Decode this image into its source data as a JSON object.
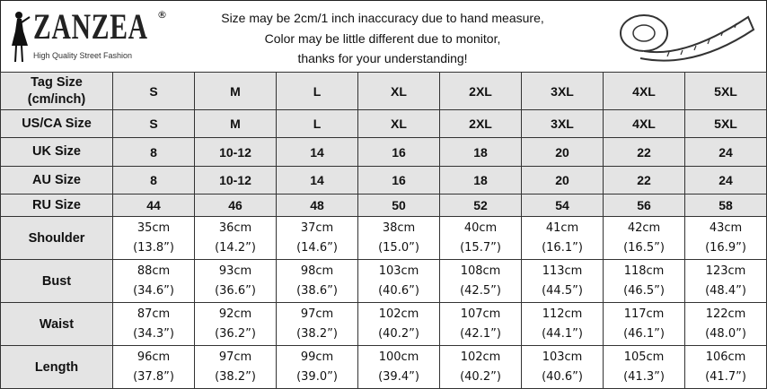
{
  "brand": {
    "name": "ZANZEA",
    "registered": "®",
    "tagline": "High Quality Street Fashion"
  },
  "notes": [
    "Size may be 2cm/1 inch inaccuracy due to hand measure,",
    "Color may be little different due to monitor,",
    "thanks for your understanding!"
  ],
  "icons": {
    "logo": "woman-silhouette-icon",
    "tape": "measuring-tape-icon"
  },
  "size_rows": [
    {
      "label": "Tag Size (cm/inch)",
      "values": [
        "S",
        "M",
        "L",
        "XL",
        "2XL",
        "3XL",
        "4XL",
        "5XL"
      ]
    },
    {
      "label": "US/CA Size",
      "values": [
        "S",
        "M",
        "L",
        "XL",
        "2XL",
        "3XL",
        "4XL",
        "5XL"
      ]
    },
    {
      "label": "UK Size",
      "values": [
        "8",
        "10-12",
        "14",
        "16",
        "18",
        "20",
        "22",
        "24"
      ]
    },
    {
      "label": "AU Size",
      "values": [
        "8",
        "10-12",
        "14",
        "16",
        "18",
        "20",
        "22",
        "24"
      ]
    },
    {
      "label": "RU Size",
      "values": [
        "44",
        "46",
        "48",
        "50",
        "52",
        "54",
        "56",
        "58"
      ]
    }
  ],
  "measure_rows": [
    {
      "label": "Shoulder",
      "cm": [
        "35cm",
        "36cm",
        "37cm",
        "38cm",
        "40cm",
        "41cm",
        "42cm",
        "43cm"
      ],
      "inch": [
        "(13.8”)",
        "(14.2”)",
        "(14.6”)",
        "(15.0”)",
        "(15.7”)",
        "(16.1”)",
        "(16.5”)",
        "(16.9”)"
      ]
    },
    {
      "label": "Bust",
      "cm": [
        "88cm",
        "93cm",
        "98cm",
        "103cm",
        "108cm",
        "113cm",
        "118cm",
        "123cm"
      ],
      "inch": [
        "(34.6”)",
        "(36.6”)",
        "(38.6”)",
        "(40.6”)",
        "(42.5”)",
        "(44.5”)",
        "(46.5”)",
        "(48.4”)"
      ]
    },
    {
      "label": "Waist",
      "cm": [
        "87cm",
        "92cm",
        "97cm",
        "102cm",
        "107cm",
        "112cm",
        "117cm",
        "122cm"
      ],
      "inch": [
        "(34.3”)",
        "(36.2”)",
        "(38.2”)",
        "(40.2”)",
        "(42.1”)",
        "(44.1”)",
        "(46.1”)",
        "(48.0”)"
      ]
    },
    {
      "label": "Length",
      "cm": [
        "96cm",
        "97cm",
        "99cm",
        "100cm",
        "102cm",
        "103cm",
        "105cm",
        "106cm"
      ],
      "inch": [
        "(37.8”)",
        "(38.2”)",
        "(39.0”)",
        "(39.4”)",
        "(40.2”)",
        "(40.6”)",
        "(41.3”)",
        "(41.7”)"
      ]
    }
  ]
}
